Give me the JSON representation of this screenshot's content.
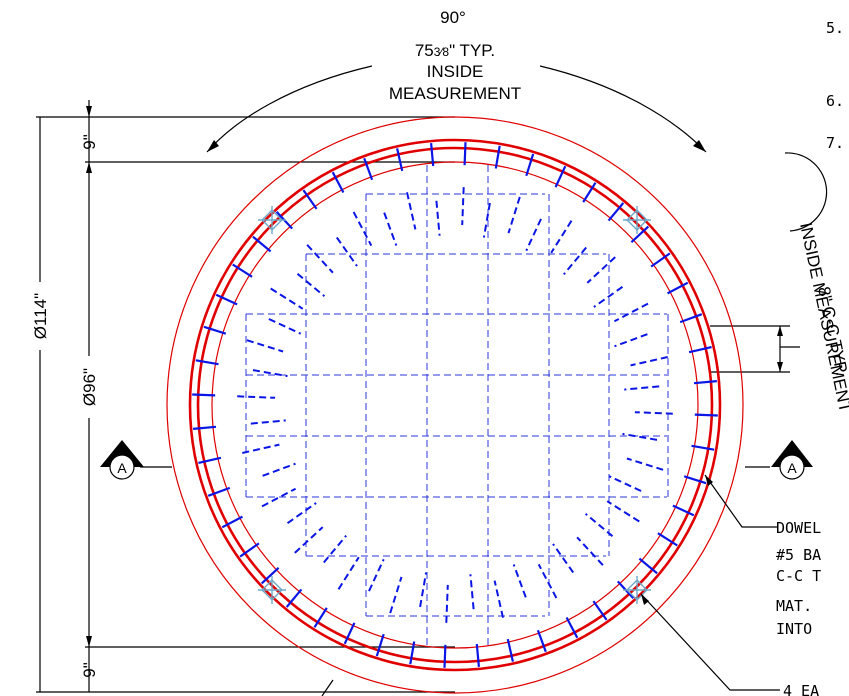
{
  "top_angle": {
    "angle": "90°",
    "spacing_whole": "75",
    "spacing_frac": "3⁄8",
    "spacing_suffix": "\" TYP.",
    "line3": "INSIDE",
    "line4": "MEASUREMENT"
  },
  "notes": [
    "5.",
    "6.",
    "7."
  ],
  "side_annotation": {
    "line1": "8\" C-C TYP.",
    "line2": "INSIDE MEASUREMENT"
  },
  "dimensions": {
    "top_offset": "9\"",
    "bottom_offset": "9\"",
    "outer_diameter": "Ø114\"",
    "inner_diameter": "Ø96\""
  },
  "section_marker_left": "A",
  "section_marker_right": "A",
  "callouts": {
    "dowel": [
      "DOWEL",
      "#5 BA",
      "C-C T",
      "MAT.",
      "INTO"
    ],
    "bottom": "4 EA"
  },
  "colors": {
    "outer_ring": "#e00000",
    "thin_ring": "#e00000",
    "rebar": "#0a16e6",
    "grid": "#2a34d8",
    "fitting": "#6fa8c8",
    "ink": "#000000"
  }
}
